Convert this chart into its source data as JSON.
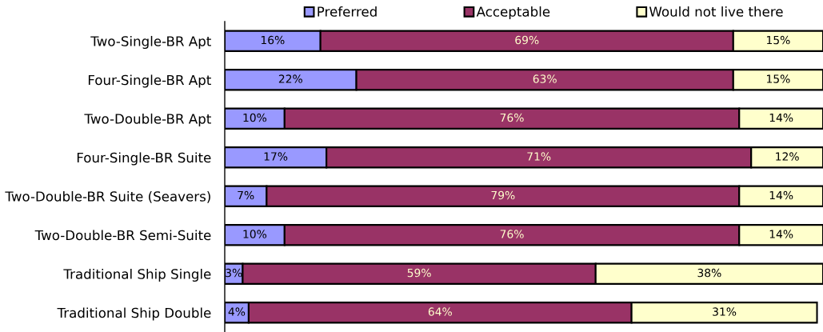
{
  "chart_data": {
    "type": "bar",
    "orientation": "horizontal",
    "stacked": true,
    "categories": [
      "Two-Single-BR Apt",
      "Four-Single-BR Apt",
      "Two-Double-BR Apt",
      "Four-Single-BR Suite",
      "Two-Double-BR Suite (Seavers)",
      "Two-Double-BR Semi-Suite",
      "Traditional Ship Single",
      "Traditional Ship Double"
    ],
    "series": [
      {
        "name": "Preferred",
        "color": "#9999ff",
        "values": [
          16,
          22,
          10,
          17,
          7,
          10,
          3,
          4
        ],
        "value_labels": [
          "16%",
          "22%",
          "10%",
          "17%",
          "7%",
          "10%",
          "3%",
          "4%"
        ]
      },
      {
        "name": "Acceptable",
        "color": "#993366",
        "values": [
          69,
          63,
          76,
          71,
          79,
          76,
          59,
          64
        ],
        "value_labels": [
          "69%",
          "63%",
          "76%",
          "71%",
          "79%",
          "76%",
          "59%",
          "64%"
        ]
      },
      {
        "name": "Would not live there",
        "color": "#ffffcc",
        "values": [
          15,
          15,
          14,
          12,
          14,
          14,
          38,
          31
        ],
        "value_labels": [
          "15%",
          "15%",
          "14%",
          "12%",
          "14%",
          "14%",
          "38%",
          "31%"
        ]
      }
    ],
    "xlim": [
      0,
      100
    ],
    "tick_labels": "y",
    "legend": "top",
    "grid": false
  }
}
